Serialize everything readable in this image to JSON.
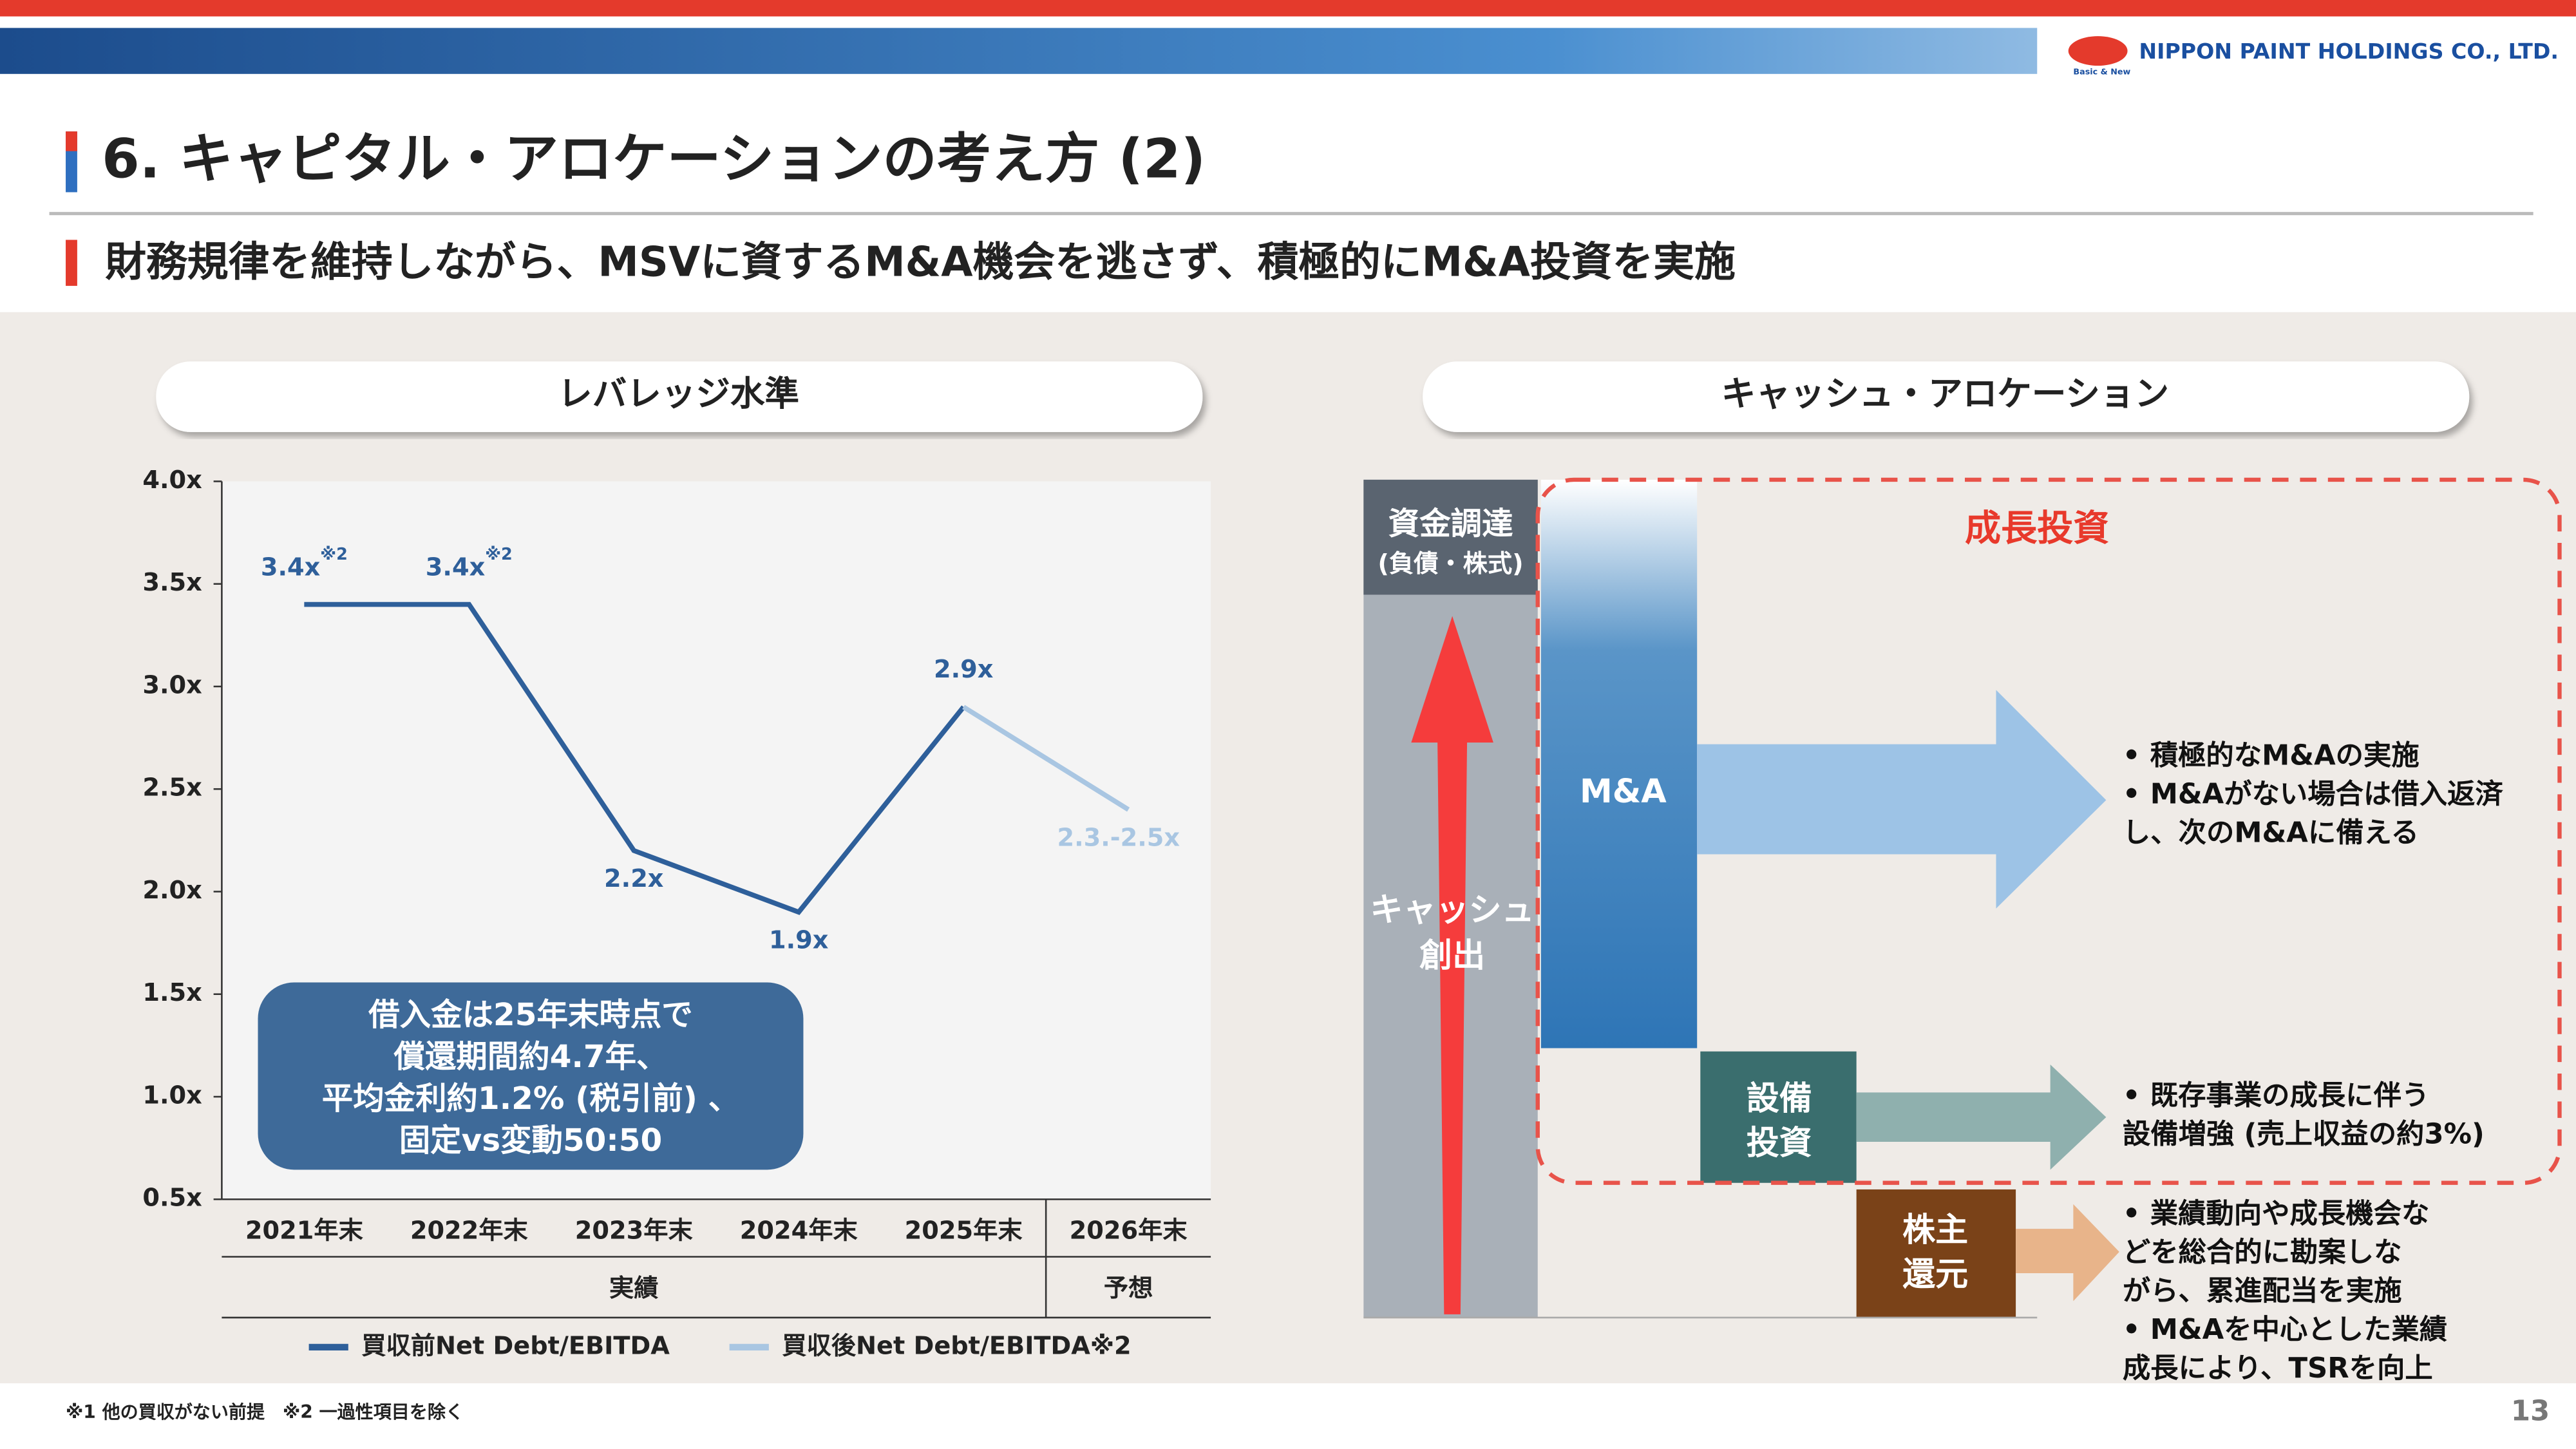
{
  "header": {
    "logo": "NIPPON PAINT HOLDINGS CO., LTD.",
    "logo_tagline": "Basic & New",
    "title": "6. キャピタル・アロケーションの考え方 (2)",
    "subtitle": "財務規律を維持しながら、MSVに資するM&A機会を逃さず、積極的にM&A投資を実施"
  },
  "left_panel": {
    "heading": "レバレッジ水準"
  },
  "chart_data": {
    "type": "line",
    "categories": [
      "2021年末",
      "2022年末",
      "2023年末",
      "2024年末",
      "2025年末",
      "2026年末"
    ],
    "category_groups": [
      "実績",
      "予想"
    ],
    "series": [
      {
        "name": "買収前Net Debt/EBITDA",
        "color": "#2e5f9a",
        "values": [
          3.4,
          3.4,
          2.2,
          1.9,
          2.9,
          null
        ],
        "value_labels": [
          "3.4x※2",
          "3.4x※2",
          "2.2x",
          "1.9x",
          "2.9x",
          null
        ]
      },
      {
        "name": "買収後Net Debt/EBITDA※2",
        "color": "#a9c6e2",
        "values": [
          null,
          null,
          null,
          null,
          2.9,
          2.4
        ],
        "value_labels": [
          null,
          null,
          null,
          null,
          null,
          "2.3.-2.5x"
        ]
      }
    ],
    "ylim": [
      0.5,
      4.0
    ],
    "yticks": [
      {
        "value": 0.5,
        "label": "0.5x"
      },
      {
        "value": 1.0,
        "label": "1.0x"
      },
      {
        "value": 1.5,
        "label": "1.5x"
      },
      {
        "value": 2.0,
        "label": "2.0x"
      },
      {
        "value": 2.5,
        "label": "2.5x"
      },
      {
        "value": 3.0,
        "label": "3.0x"
      },
      {
        "value": 3.5,
        "label": "3.5x"
      },
      {
        "value": 4.0,
        "label": "4.0x"
      }
    ],
    "annotation": [
      "借入金は25年末時点で",
      "償還期間約4.7年、",
      "平均金利約1.2% (税引前) 、",
      "固定vs変動50:50"
    ]
  },
  "right_panel": {
    "heading": "キャッシュ・アロケーション",
    "funding": [
      "資金調達",
      "(負債・株式)"
    ],
    "cash": [
      "キャッシュ",
      "創出"
    ],
    "growth": "成長投資",
    "ma": "M&A",
    "capex": [
      "設備",
      "投資"
    ],
    "return": [
      "株主",
      "還元"
    ],
    "ma_bullets": [
      "•  積極的なM&Aの実施",
      "•  M&Aがない場合は借入返済",
      "    し、次のM&Aに備える"
    ],
    "capex_bullets": [
      "•  既存事業の成長に伴う",
      "    設備増強 (売上収益の約3%)"
    ],
    "return_bullets": [
      "•  業績動向や成長機会な",
      "    どを総合的に勘案しな",
      "    がら、累進配当を実施",
      "•  M&Aを中心とした業績",
      "    成長により、TSRを向上"
    ]
  },
  "footer": {
    "notes": "※1 他の買収がない前提　※2 一過性項目を除く",
    "page": "13"
  }
}
